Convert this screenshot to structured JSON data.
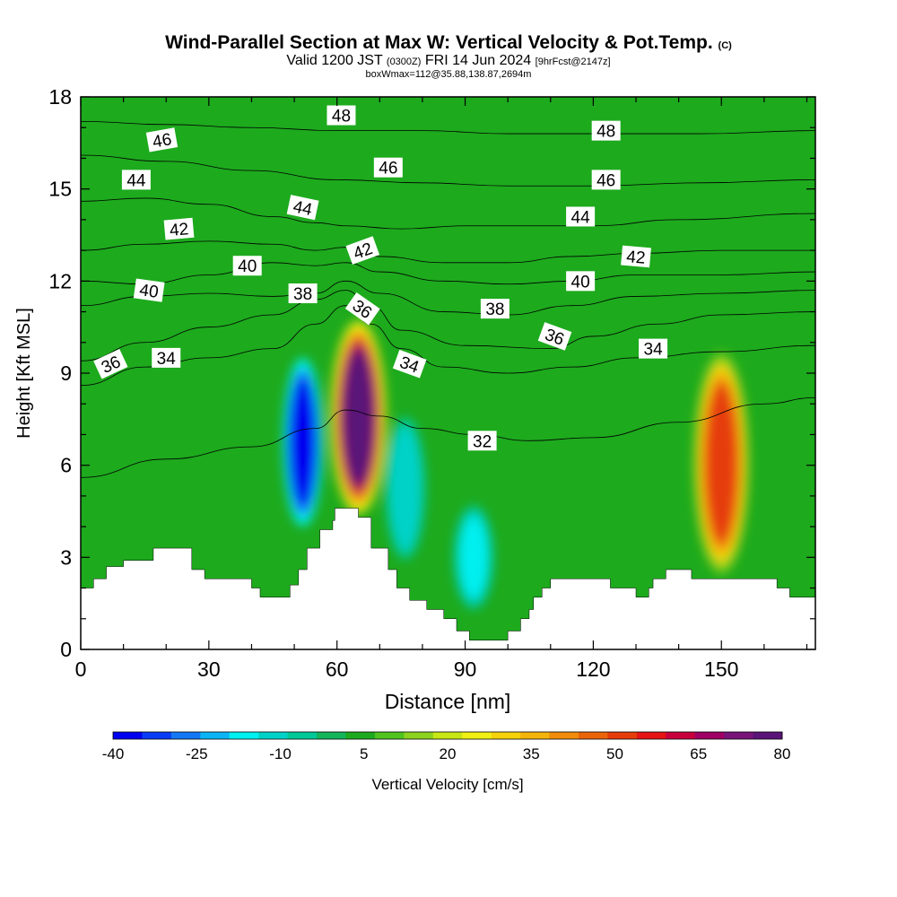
{
  "title": {
    "main": "Wind-Parallel Section at Max W: Vertical Velocity & Pot.Temp.",
    "copyright": "(C)",
    "valid_prefix": "Valid 1200 JST",
    "valid_utc": "(0300Z)",
    "valid_date": "FRI 14 Jun 2024",
    "forecast": "[9hrFcst@2147z]",
    "box_info": "boxWmax=112@35.88,138.87,2694m"
  },
  "chart_data": {
    "type": "heatmap",
    "xlabel": "Distance [nm]",
    "ylabel": "Height [Kft MSL]",
    "xlim": [
      0,
      172
    ],
    "ylim": [
      0,
      18
    ],
    "x_ticks": [
      0,
      30,
      60,
      90,
      120,
      150
    ],
    "y_ticks": [
      0,
      3,
      6,
      9,
      12,
      15,
      18
    ],
    "field_units": "Vertical Velocity [cm/s]",
    "field_background_color": "#1daa1d",
    "colorbar": {
      "label": "Vertical Velocity [cm/s]",
      "tick_labels": [
        -40,
        -25,
        -10,
        5,
        20,
        35,
        50,
        65,
        80
      ],
      "colors": [
        "#0000f0",
        "#0a3cf5",
        "#1478f5",
        "#0ab4f5",
        "#00f0f0",
        "#00d2c8",
        "#00c896",
        "#14b45a",
        "#1eaa1e",
        "#50c31e",
        "#8cd21e",
        "#c8e614",
        "#f0f014",
        "#f5d20a",
        "#f5b40a",
        "#f08c0a",
        "#eb640a",
        "#e63c0a",
        "#e61414",
        "#c8003c",
        "#a00064",
        "#781478",
        "#5a1478"
      ]
    },
    "updraft_cells": [
      {
        "x": 65,
        "z_bottom": 4.5,
        "z_top": 11.5,
        "peak_w": 80
      },
      {
        "x": 150,
        "z_bottom": 2.5,
        "z_top": 10.5,
        "peak_w": 55
      }
    ],
    "downdraft_cells": [
      {
        "x": 52,
        "z_bottom": 3.5,
        "z_top": 10,
        "peak_w": -40
      },
      {
        "x": 92,
        "z_bottom": 1,
        "z_top": 5,
        "peak_w": -20
      },
      {
        "x": 76,
        "z_bottom": 2.5,
        "z_top": 8,
        "peak_w": -15
      }
    ],
    "terrain_kft": [
      [
        0,
        2.0
      ],
      [
        3,
        2.0
      ],
      [
        3,
        2.3
      ],
      [
        6,
        2.3
      ],
      [
        6,
        2.7
      ],
      [
        10,
        2.7
      ],
      [
        10,
        2.9
      ],
      [
        17,
        2.9
      ],
      [
        17,
        3.3
      ],
      [
        26,
        3.3
      ],
      [
        26,
        2.6
      ],
      [
        29,
        2.6
      ],
      [
        29,
        2.3
      ],
      [
        40,
        2.3
      ],
      [
        40,
        2.0
      ],
      [
        42,
        2.0
      ],
      [
        42,
        1.7
      ],
      [
        49,
        1.7
      ],
      [
        49,
        2.1
      ],
      [
        51,
        2.1
      ],
      [
        51,
        2.6
      ],
      [
        53,
        2.6
      ],
      [
        53,
        3.3
      ],
      [
        56,
        3.3
      ],
      [
        56,
        3.9
      ],
      [
        59,
        3.9
      ],
      [
        59,
        4.2
      ],
      [
        59.5,
        4.2
      ],
      [
        59.5,
        4.6
      ],
      [
        65,
        4.6
      ],
      [
        65,
        4.3
      ],
      [
        68,
        4.3
      ],
      [
        68,
        3.3
      ],
      [
        72,
        3.3
      ],
      [
        72,
        2.6
      ],
      [
        74,
        2.6
      ],
      [
        74,
        2.0
      ],
      [
        77,
        2.0
      ],
      [
        77,
        1.6
      ],
      [
        81,
        1.6
      ],
      [
        81,
        1.3
      ],
      [
        85,
        1.3
      ],
      [
        85,
        1.0
      ],
      [
        88,
        1.0
      ],
      [
        88,
        0.6
      ],
      [
        91,
        0.6
      ],
      [
        91,
        0.3
      ],
      [
        100,
        0.3
      ],
      [
        100,
        0.6
      ],
      [
        103,
        0.6
      ],
      [
        103,
        1.0
      ],
      [
        105,
        1.0
      ],
      [
        105,
        1.3
      ],
      [
        106,
        1.3
      ],
      [
        106,
        1.7
      ],
      [
        108,
        1.7
      ],
      [
        108,
        2.0
      ],
      [
        110,
        2.0
      ],
      [
        110,
        2.3
      ],
      [
        124,
        2.3
      ],
      [
        124,
        2.0
      ],
      [
        130,
        2.0
      ],
      [
        130,
        1.7
      ],
      [
        133,
        1.7
      ],
      [
        133,
        2.0
      ],
      [
        134,
        2.0
      ],
      [
        134,
        2.3
      ],
      [
        137,
        2.3
      ],
      [
        137,
        2.6
      ],
      [
        143,
        2.6
      ],
      [
        143,
        2.3
      ],
      [
        163,
        2.3
      ],
      [
        163,
        2.0
      ],
      [
        166,
        2.0
      ],
      [
        166,
        1.7
      ],
      [
        172,
        1.7
      ]
    ],
    "theta_contours": [
      {
        "level": 32,
        "points": [
          [
            0,
            5.6
          ],
          [
            20,
            6.2
          ],
          [
            40,
            6.6
          ],
          [
            55,
            7.2
          ],
          [
            62,
            7.8
          ],
          [
            70,
            7.6
          ],
          [
            80,
            7.2
          ],
          [
            92,
            7.0
          ],
          [
            105,
            6.8
          ],
          [
            120,
            6.9
          ],
          [
            140,
            7.4
          ],
          [
            160,
            8.0
          ],
          [
            172,
            8.2
          ]
        ]
      },
      {
        "level": 34,
        "points": [
          [
            0,
            8.6
          ],
          [
            15,
            9.2
          ],
          [
            30,
            9.5
          ],
          [
            45,
            9.8
          ],
          [
            55,
            10.6
          ],
          [
            62,
            11.2
          ],
          [
            68,
            10.6
          ],
          [
            75,
            9.8
          ],
          [
            85,
            9.2
          ],
          [
            100,
            9.0
          ],
          [
            115,
            9.2
          ],
          [
            130,
            9.5
          ],
          [
            150,
            9.7
          ],
          [
            172,
            9.9
          ]
        ]
      },
      {
        "level": 36,
        "points": [
          [
            0,
            9.4
          ],
          [
            15,
            10.0
          ],
          [
            30,
            10.5
          ],
          [
            45,
            10.9
          ],
          [
            55,
            11.4
          ],
          [
            62,
            11.7
          ],
          [
            68,
            11.2
          ],
          [
            75,
            10.4
          ],
          [
            90,
            9.9
          ],
          [
            110,
            9.8
          ],
          [
            120,
            10.2
          ],
          [
            135,
            10.6
          ],
          [
            150,
            10.9
          ],
          [
            172,
            11.0
          ]
        ]
      },
      {
        "level": 38,
        "points": [
          [
            0,
            11.2
          ],
          [
            15,
            11.5
          ],
          [
            30,
            11.6
          ],
          [
            45,
            11.5
          ],
          [
            55,
            11.6
          ],
          [
            62,
            12.0
          ],
          [
            70,
            11.6
          ],
          [
            85,
            11.0
          ],
          [
            100,
            10.9
          ],
          [
            115,
            11.2
          ],
          [
            130,
            11.5
          ],
          [
            150,
            11.6
          ],
          [
            172,
            11.7
          ]
        ]
      },
      {
        "level": 40,
        "points": [
          [
            0,
            12.0
          ],
          [
            15,
            11.9
          ],
          [
            30,
            12.2
          ],
          [
            45,
            12.6
          ],
          [
            55,
            12.5
          ],
          [
            62,
            12.6
          ],
          [
            70,
            12.3
          ],
          [
            85,
            12.0
          ],
          [
            100,
            11.9
          ],
          [
            115,
            12.0
          ],
          [
            130,
            12.2
          ],
          [
            150,
            12.2
          ],
          [
            172,
            12.3
          ]
        ]
      },
      {
        "level": 42,
        "points": [
          [
            0,
            13.0
          ],
          [
            15,
            13.2
          ],
          [
            30,
            13.3
          ],
          [
            45,
            13.2
          ],
          [
            55,
            13.0
          ],
          [
            62,
            13.1
          ],
          [
            70,
            12.8
          ],
          [
            85,
            12.6
          ],
          [
            100,
            12.6
          ],
          [
            115,
            12.8
          ],
          [
            130,
            12.9
          ],
          [
            150,
            13.0
          ],
          [
            172,
            13.0
          ]
        ]
      },
      {
        "level": 44,
        "points": [
          [
            0,
            14.6
          ],
          [
            15,
            14.7
          ],
          [
            30,
            14.5
          ],
          [
            45,
            14.1
          ],
          [
            55,
            13.9
          ],
          [
            62,
            13.8
          ],
          [
            75,
            13.7
          ],
          [
            90,
            13.8
          ],
          [
            105,
            13.8
          ],
          [
            120,
            13.8
          ],
          [
            140,
            14.0
          ],
          [
            172,
            14.2
          ]
        ]
      },
      {
        "level": 46,
        "points": [
          [
            0,
            16.1
          ],
          [
            20,
            15.9
          ],
          [
            40,
            15.6
          ],
          [
            60,
            15.3
          ],
          [
            80,
            15.2
          ],
          [
            100,
            15.1
          ],
          [
            120,
            15.1
          ],
          [
            145,
            15.2
          ],
          [
            172,
            15.3
          ]
        ]
      },
      {
        "level": 48,
        "points": [
          [
            0,
            17.2
          ],
          [
            20,
            17.1
          ],
          [
            40,
            17.0
          ],
          [
            60,
            16.9
          ],
          [
            80,
            16.9
          ],
          [
            100,
            16.8
          ],
          [
            120,
            16.8
          ],
          [
            145,
            16.8
          ],
          [
            172,
            16.9
          ]
        ]
      }
    ],
    "contour_labels": [
      {
        "text": "48",
        "x": 61,
        "y": 17.4,
        "rot": 0
      },
      {
        "text": "48",
        "x": 123,
        "y": 16.9,
        "rot": 0
      },
      {
        "text": "46",
        "x": 19,
        "y": 16.6,
        "rot": -10
      },
      {
        "text": "46",
        "x": 72,
        "y": 15.7,
        "rot": 0
      },
      {
        "text": "46",
        "x": 123,
        "y": 15.3,
        "rot": 0
      },
      {
        "text": "44",
        "x": 13,
        "y": 15.3,
        "rot": 0
      },
      {
        "text": "44",
        "x": 52,
        "y": 14.4,
        "rot": 12
      },
      {
        "text": "44",
        "x": 117,
        "y": 14.1,
        "rot": 0
      },
      {
        "text": "42",
        "x": 23,
        "y": 13.7,
        "rot": -5
      },
      {
        "text": "42",
        "x": 66,
        "y": 13.0,
        "rot": -20
      },
      {
        "text": "42",
        "x": 130,
        "y": 12.8,
        "rot": 5
      },
      {
        "text": "40",
        "x": 39,
        "y": 12.5,
        "rot": 0
      },
      {
        "text": "40",
        "x": 16,
        "y": 11.7,
        "rot": 8
      },
      {
        "text": "40",
        "x": 117,
        "y": 12.0,
        "rot": 0
      },
      {
        "text": "38",
        "x": 52,
        "y": 11.6,
        "rot": 0
      },
      {
        "text": "38",
        "x": 97,
        "y": 11.1,
        "rot": 0
      },
      {
        "text": "36",
        "x": 66,
        "y": 11.1,
        "rot": 35
      },
      {
        "text": "36",
        "x": 111,
        "y": 10.2,
        "rot": 20
      },
      {
        "text": "36",
        "x": 7,
        "y": 9.3,
        "rot": -25
      },
      {
        "text": "34",
        "x": 20,
        "y": 9.5,
        "rot": 0
      },
      {
        "text": "34",
        "x": 77,
        "y": 9.3,
        "rot": 20
      },
      {
        "text": "34",
        "x": 134,
        "y": 9.8,
        "rot": 0
      },
      {
        "text": "32",
        "x": 94,
        "y": 6.8,
        "rot": 0
      }
    ]
  }
}
